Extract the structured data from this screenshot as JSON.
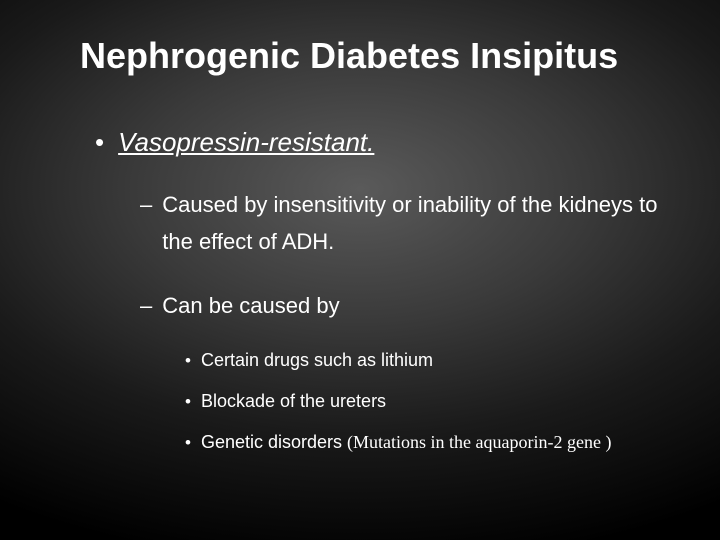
{
  "title": "Nephrogenic Diabetes Insipitus",
  "bullets": {
    "l1_1": "Vasopressin-resistant.",
    "l2_1": "Caused by insensitivity or inability of the kidneys to the effect of ADH.",
    "l2_2": "Can be caused by",
    "l3_1": "Certain drugs such as lithium",
    "l3_2": "Blockade of the ureters",
    "l3_3a": "Genetic disorders ",
    "l3_3b": "(Mutations in the aquaporin-2 gene )"
  },
  "colors": {
    "text": "#ffffff",
    "bg_center": "#5a5a5a",
    "bg_outer": "#000000"
  },
  "typography": {
    "title_size": 36,
    "l1_size": 26,
    "l2_size": 22,
    "l3_size": 18,
    "font": "Arial"
  }
}
